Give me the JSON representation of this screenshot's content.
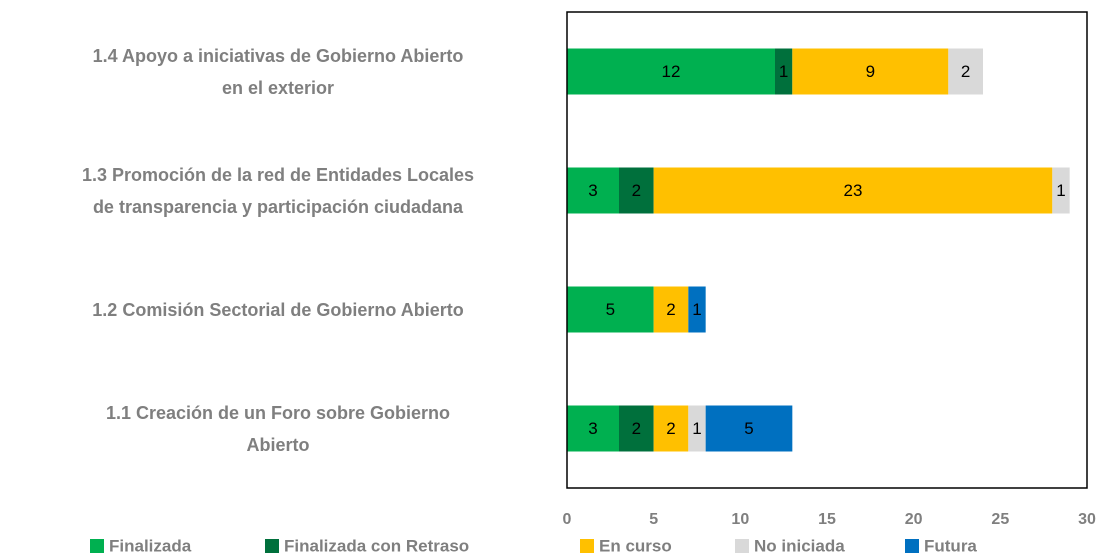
{
  "chart_data": {
    "type": "stacked_barh",
    "categories": [
      "1.4 Apoyo a iniciativas de Gobierno Abierto\nen el exterior",
      "1.3 Promoción de la red de Entidades Locales\nde transparencia y participación ciudadana",
      "1.2 Comisión Sectorial de Gobierno Abierto",
      "1.1 Creación de un Foro sobre Gobierno\nAbierto"
    ],
    "series": [
      {
        "name": "Finalizada",
        "color": "#00b050",
        "values": [
          12,
          3,
          5,
          3
        ]
      },
      {
        "name": "Finalizada con Retraso",
        "color": "#00703c",
        "values": [
          1,
          2,
          null,
          2
        ]
      },
      {
        "name": "En curso",
        "color": "#ffc000",
        "values": [
          9,
          23,
          2,
          2
        ]
      },
      {
        "name": "No iniciada",
        "color": "#d9d9d9",
        "values": [
          2,
          1,
          null,
          1
        ]
      },
      {
        "name": "Futura",
        "color": "#0070c0",
        "values": [
          null,
          null,
          1,
          5
        ]
      }
    ],
    "xlim": [
      0,
      30
    ],
    "xticks": [
      0,
      5,
      10,
      15,
      20,
      25,
      30
    ],
    "legend": "bottom"
  }
}
